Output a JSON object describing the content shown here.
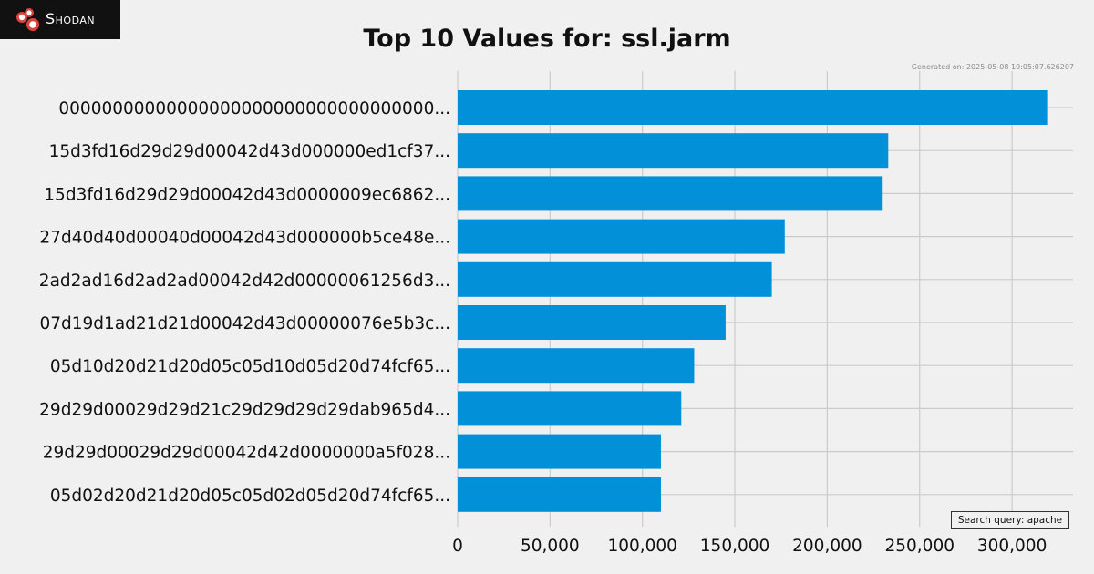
{
  "brand": {
    "name": "Shodan",
    "logo_icon": "shodan-logo-icon"
  },
  "generated_text": "Generated on: 2025-05-08 19:05:07.626207",
  "search_query_text": "Search query: apache",
  "chart_data": {
    "type": "bar",
    "orientation": "horizontal",
    "title": "Top 10 Values for: ssl.jarm",
    "xlabel": "",
    "ylabel": "",
    "categories": [
      "00000000000000000000000000000000000...",
      "15d3fd16d29d29d00042d43d000000ed1cf37...",
      "15d3fd16d29d29d00042d43d0000009ec6862...",
      "27d40d40d00040d00042d43d000000b5ce48e...",
      "2ad2ad16d2ad2ad00042d42d00000061256d3...",
      "07d19d1ad21d21d00042d43d00000076e5b3c...",
      "05d10d20d21d20d05c05d10d05d20d74fcf65...",
      "29d29d00029d29d21c29d29d29d29dab965d4...",
      "29d29d00029d29d00042d42d0000000a5f028...",
      "05d02d20d21d20d05c05d02d05d20d74fcf65..."
    ],
    "values": [
      319000,
      233000,
      230000,
      177000,
      170000,
      145000,
      128000,
      121000,
      110000,
      110000
    ],
    "xlim": [
      0,
      333000
    ],
    "xticks": [
      0,
      50000,
      100000,
      150000,
      200000,
      250000,
      300000
    ],
    "xtick_labels": [
      "0",
      "50,000",
      "100,000",
      "150,000",
      "200,000",
      "250,000",
      "300,000"
    ],
    "bar_color": "#0291d9",
    "grid": true,
    "grid_color": "#cbcbcb"
  }
}
